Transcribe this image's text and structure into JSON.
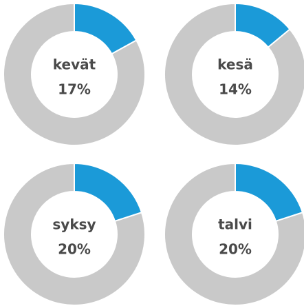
{
  "chart_data": [
    {
      "type": "donut",
      "title": "kevät",
      "values": [
        17
      ],
      "value_labels": [
        "17%"
      ],
      "color": "#1b9ad8",
      "rest_color": "#c9c9c9"
    },
    {
      "type": "donut",
      "title": "kesä",
      "values": [
        14
      ],
      "value_labels": [
        "14%"
      ],
      "color": "#1b9ad8",
      "rest_color": "#c9c9c9"
    },
    {
      "type": "donut",
      "title": "syksy",
      "values": [
        20
      ],
      "value_labels": [
        "20%"
      ],
      "color": "#1b9ad8",
      "rest_color": "#c9c9c9"
    },
    {
      "type": "donut",
      "title": "talvi",
      "values": [
        20
      ],
      "value_labels": [
        "20%"
      ],
      "color": "#1b9ad8",
      "rest_color": "#c9c9c9"
    }
  ]
}
